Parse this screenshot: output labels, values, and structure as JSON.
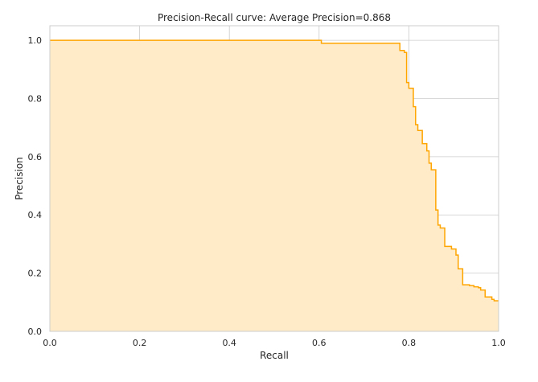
{
  "chart_data": {
    "type": "area",
    "title": "Precision-Recall curve: Average Precision=0.868",
    "xlabel": "Recall",
    "ylabel": "Precision",
    "xlim": [
      0.0,
      1.0
    ],
    "ylim": [
      0.0,
      1.05
    ],
    "x_ticks": [
      "0.0",
      "0.2",
      "0.4",
      "0.6",
      "0.8",
      "1.0"
    ],
    "y_ticks": [
      "0.0",
      "0.2",
      "0.4",
      "0.6",
      "0.8",
      "1.0"
    ],
    "grid": true,
    "line_color": "#FFA500",
    "fill_color": "#FFEBC8",
    "step": "post",
    "series": [
      {
        "recall": [
          0.0,
          0.605,
          0.605,
          0.78,
          0.78,
          0.79,
          0.79,
          0.795,
          0.795,
          0.8,
          0.8,
          0.81,
          0.81,
          0.815,
          0.815,
          0.82,
          0.82,
          0.83,
          0.83,
          0.84,
          0.84,
          0.845,
          0.845,
          0.85,
          0.85,
          0.86,
          0.86,
          0.865,
          0.865,
          0.87,
          0.87,
          0.88,
          0.88,
          0.895,
          0.895,
          0.905,
          0.905,
          0.91,
          0.91,
          0.92,
          0.92,
          0.935,
          0.935,
          0.945,
          0.945,
          0.955,
          0.955,
          0.96,
          0.96,
          0.97,
          0.97,
          0.985,
          0.985,
          0.99,
          0.99,
          1.0
        ],
        "precision": [
          1.0,
          1.0,
          0.99,
          0.99,
          0.965,
          0.965,
          0.958,
          0.958,
          0.855,
          0.855,
          0.835,
          0.835,
          0.772,
          0.772,
          0.71,
          0.71,
          0.69,
          0.69,
          0.645,
          0.645,
          0.62,
          0.62,
          0.578,
          0.578,
          0.555,
          0.555,
          0.417,
          0.417,
          0.365,
          0.365,
          0.355,
          0.355,
          0.292,
          0.292,
          0.283,
          0.283,
          0.262,
          0.262,
          0.215,
          0.215,
          0.16,
          0.16,
          0.157,
          0.157,
          0.153,
          0.153,
          0.15,
          0.15,
          0.142,
          0.142,
          0.118,
          0.118,
          0.11,
          0.11,
          0.105,
          0.105
        ]
      }
    ]
  }
}
